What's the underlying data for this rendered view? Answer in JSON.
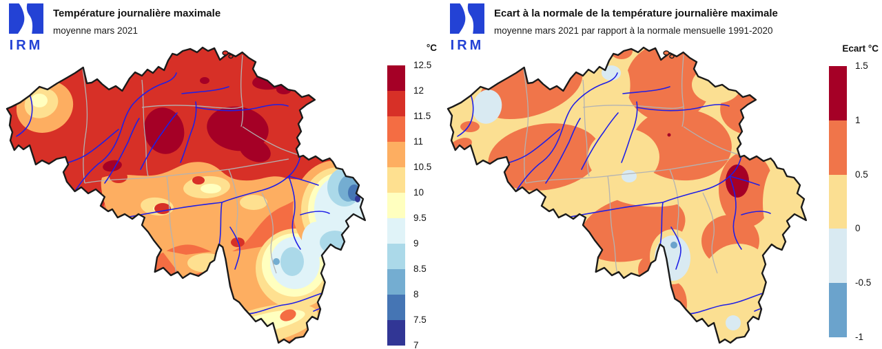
{
  "brand": {
    "logo_text": "IRM",
    "logo_color": "#2342d5"
  },
  "left_panel": {
    "title": "Température journalière maximale",
    "subtitle": "moyenne mars 2021",
    "colorbar": {
      "title": "°C",
      "ticks": [
        "12.5",
        "12",
        "11.5",
        "11",
        "10.5",
        "10",
        "9.5",
        "9",
        "8.5",
        "8",
        "7.5",
        "7"
      ],
      "colors": [
        "#a50026",
        "#d73027",
        "#f46d43",
        "#fdae61",
        "#fee090",
        "#ffffbf",
        "#e0f3f8",
        "#abd9e9",
        "#74add1",
        "#4575b4",
        "#313695"
      ]
    }
  },
  "right_panel": {
    "title": "Ecart à la normale de la température journalière maximale",
    "subtitle": "moyenne mars 2021 par rapport à la normale mensuelle 1991-2020",
    "colorbar": {
      "title": "Ecart °C",
      "ticks": [
        "1.5",
        "1",
        "0.5",
        "0",
        "-0.5",
        "-1"
      ],
      "colors": [
        "#a50026",
        "#f0754a",
        "#fbdf92",
        "#d9eaf2",
        "#6ba3cc"
      ]
    }
  },
  "map_style": {
    "outline": "#1a1a1a",
    "prov": "#b3b3b3",
    "river": "#1f1fe6",
    "logo": "#2342d5",
    "sea": "#ffffff"
  },
  "chart_data": [
    {
      "type": "heatmap",
      "title": "Température journalière maximale",
      "subtitle": "moyenne mars 2021",
      "region": "Belgique",
      "unit": "°C",
      "legend_position": "right",
      "legend_bins": [
        {
          "range": "12 – 12.5",
          "color": "#a50026"
        },
        {
          "range": "11.5 – 12",
          "color": "#d73027"
        },
        {
          "range": "11 – 11.5",
          "color": "#f46d43"
        },
        {
          "range": "10.5 – 11",
          "color": "#fdae61"
        },
        {
          "range": "10 – 10.5",
          "color": "#fee090"
        },
        {
          "range": "9.5 – 10",
          "color": "#ffffbf"
        },
        {
          "range": "9 – 9.5",
          "color": "#e0f3f8"
        },
        {
          "range": "8.5 – 9",
          "color": "#abd9e9"
        },
        {
          "range": "8 – 8.5",
          "color": "#74add1"
        },
        {
          "range": "7.5 – 8",
          "color": "#4575b4"
        },
        {
          "range": "7 – 7.5",
          "color": "#313695"
        }
      ],
      "value_range": [
        7,
        12.5
      ],
      "bin_step": 0.5,
      "spatial_pattern": "11.5–12.5 °C over north and centre (warmest cores near Brussels and Hageland), 10–11 °C in a central-south band and along the coast, 7–9.5 °C cold pocket over the High Fens / east Ardennes, 9.5–10.5 °C along the Semois in the south-east"
    },
    {
      "type": "heatmap",
      "title": "Ecart à la normale de la température journalière maximale",
      "subtitle": "moyenne mars 2021 par rapport à la normale mensuelle 1991-2020",
      "region": "Belgique",
      "unit": "°C",
      "legend_position": "right",
      "legend_bins": [
        {
          "range": "1 – 1.5",
          "color": "#a50026"
        },
        {
          "range": "0.5 – 1",
          "color": "#f0754a"
        },
        {
          "range": "0 – 0.5",
          "color": "#fbdf92"
        },
        {
          "range": "-0.5 – 0",
          "color": "#d9eaf2"
        },
        {
          "range": "-1 – -0.5",
          "color": "#6ba3cc"
        }
      ],
      "value_range": [
        -1,
        1.5
      ],
      "bin_step": 0.5,
      "spatial_pattern": "mostly 0–1 °C above normal; +1 to +1.5 °C spot in the east (High Fens); small -0.5–0 °C spots near the coast, around Antwerp, centre and south-central Ardennes"
    }
  ]
}
